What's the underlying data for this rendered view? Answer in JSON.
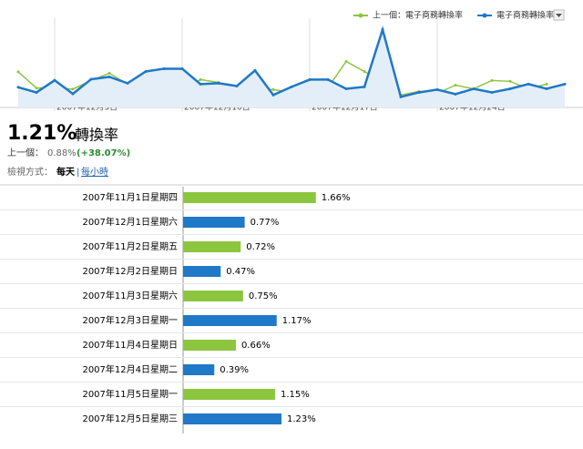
{
  "chart_data": [
    {
      "type": "line",
      "categories": [
        null,
        null,
        "2007年12月3日",
        null,
        null,
        null,
        null,
        null,
        null,
        "2007年12月10日",
        null,
        null,
        null,
        null,
        null,
        null,
        "2007年12月17日",
        null,
        null,
        null,
        null,
        null,
        null,
        "2007年12月24日",
        null,
        null,
        null,
        null,
        null,
        null,
        null
      ],
      "series": [
        {
          "name": "上一個：電子商務轉換率",
          "color": "#8cc63f",
          "values": [
            1.66,
            0.72,
            0.75,
            0.66,
            1.15,
            1.58,
            0.95,
            0.74,
            0.68,
            0.53,
            1.21,
            1.05,
            0.63,
            0.68,
            0.63,
            0.47,
            0.58,
            0.74,
            2.26,
            1.68,
            1.05,
            0.32,
            0.53,
            0.42,
            0.89,
            0.68,
            1.16,
            1.11,
            0.68,
            0.95,
            null
          ]
        },
        {
          "name": "電子商務轉換率",
          "color": "#1f78c8",
          "values": [
            0.77,
            0.47,
            1.17,
            0.39,
            1.23,
            1.37,
            1.0,
            1.68,
            1.84,
            1.84,
            0.95,
            1.0,
            0.84,
            1.74,
            0.32,
            0.79,
            1.21,
            1.21,
            0.68,
            0.79,
            4.1,
            0.21,
            0.47,
            0.63,
            0.37,
            0.68,
            0.47,
            0.68,
            0.95,
            0.68,
            0.95
          ]
        }
      ],
      "ylim": [
        -0.4,
        4.6
      ]
    },
    {
      "type": "bar",
      "orientation": "horizontal",
      "categories": [
        "2007年11月1日星期四",
        "2007年12月1日星期六",
        "2007年11月2日星期五",
        "2007年12月2日星期日",
        "2007年11月3日星期六",
        "2007年12月3日星期一",
        "2007年11月4日星期日",
        "2007年12月4日星期二",
        "2007年11月5日星期一",
        "2007年12月5日星期三"
      ],
      "values": [
        1.66,
        0.77,
        0.72,
        0.47,
        0.75,
        1.17,
        0.66,
        0.39,
        1.15,
        1.23
      ],
      "value_labels": [
        "1.66%",
        "0.77%",
        "0.72%",
        "0.47%",
        "0.75%",
        "1.17%",
        "0.66%",
        "0.39%",
        "1.15%",
        "1.23%"
      ],
      "colors": [
        "#8cc63f",
        "#1f78c8",
        "#8cc63f",
        "#1f78c8",
        "#8cc63f",
        "#1f78c8",
        "#8cc63f",
        "#1f78c8",
        "#8cc63f",
        "#1f78c8"
      ],
      "xlim": [
        0,
        5
      ]
    }
  ],
  "summary": {
    "value": "1.21%",
    "label": "轉換率",
    "previous_label": "上一個：",
    "previous_value": "0.88%",
    "change": "(+38.07%)"
  },
  "view": {
    "label": "檢視方式：",
    "options": [
      "每天",
      "每小時"
    ]
  }
}
